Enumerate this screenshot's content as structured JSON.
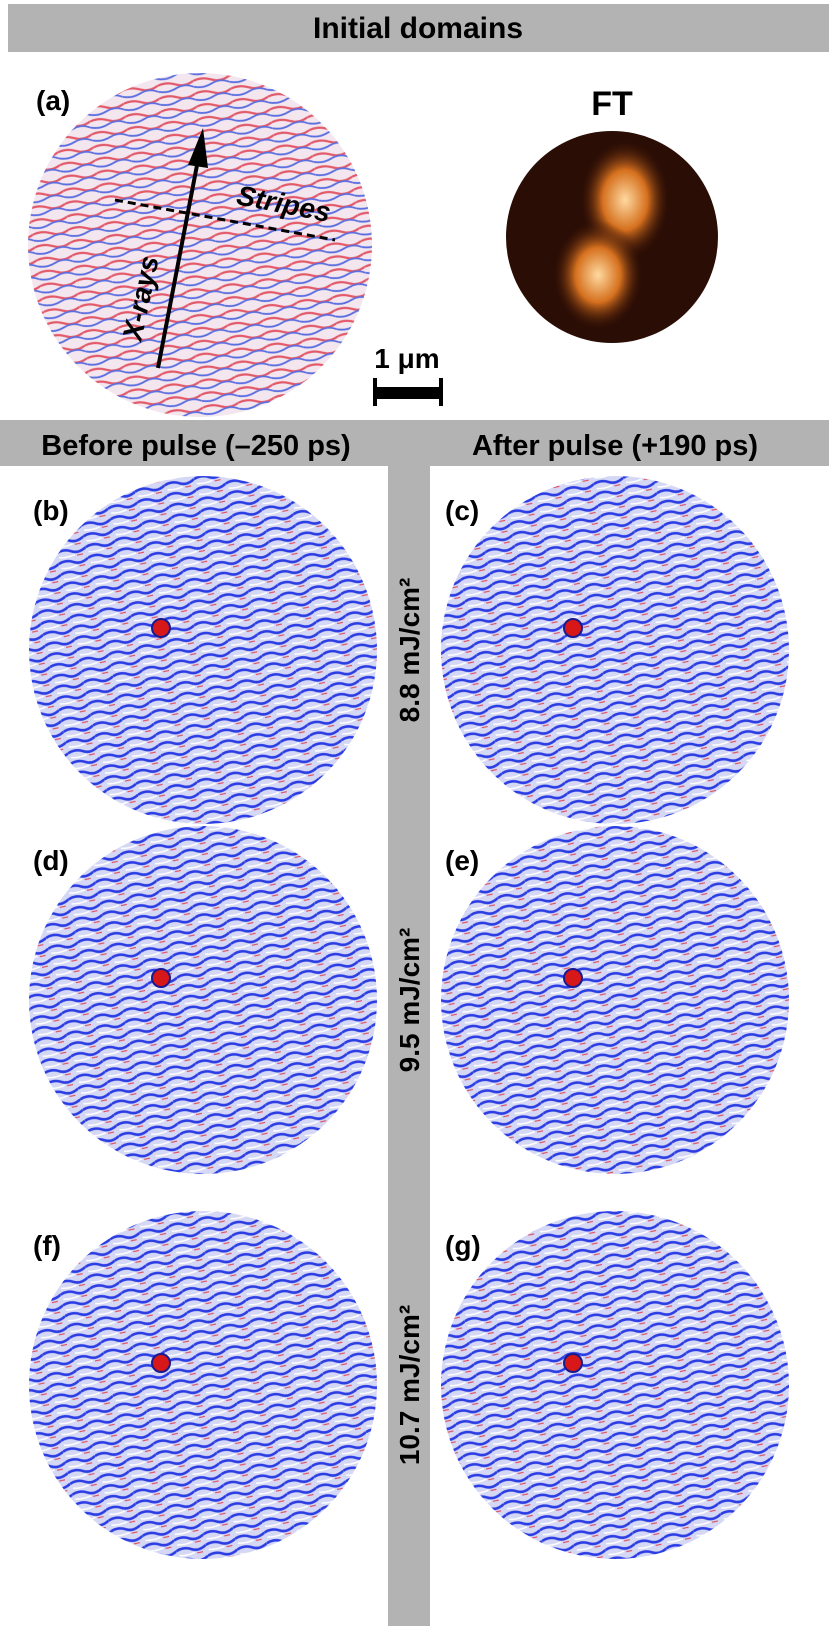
{
  "header": {
    "title": "Initial domains"
  },
  "panel_a": {
    "label": "(a)",
    "ft_title": "FT",
    "stripes_label": "Stripes",
    "xrays_label": "X-rays",
    "scale_bar": "1 μm"
  },
  "columns": [
    "Before pulse (–250 ps)",
    "After pulse (+190 ps)"
  ],
  "panels": [
    "(b)",
    "(c)",
    "(d)",
    "(e)",
    "(f)",
    "(g)"
  ],
  "fluences": [
    "8.8 mJ/cm²",
    "9.5 mJ/cm²",
    "10.7 mJ/cm²"
  ]
}
